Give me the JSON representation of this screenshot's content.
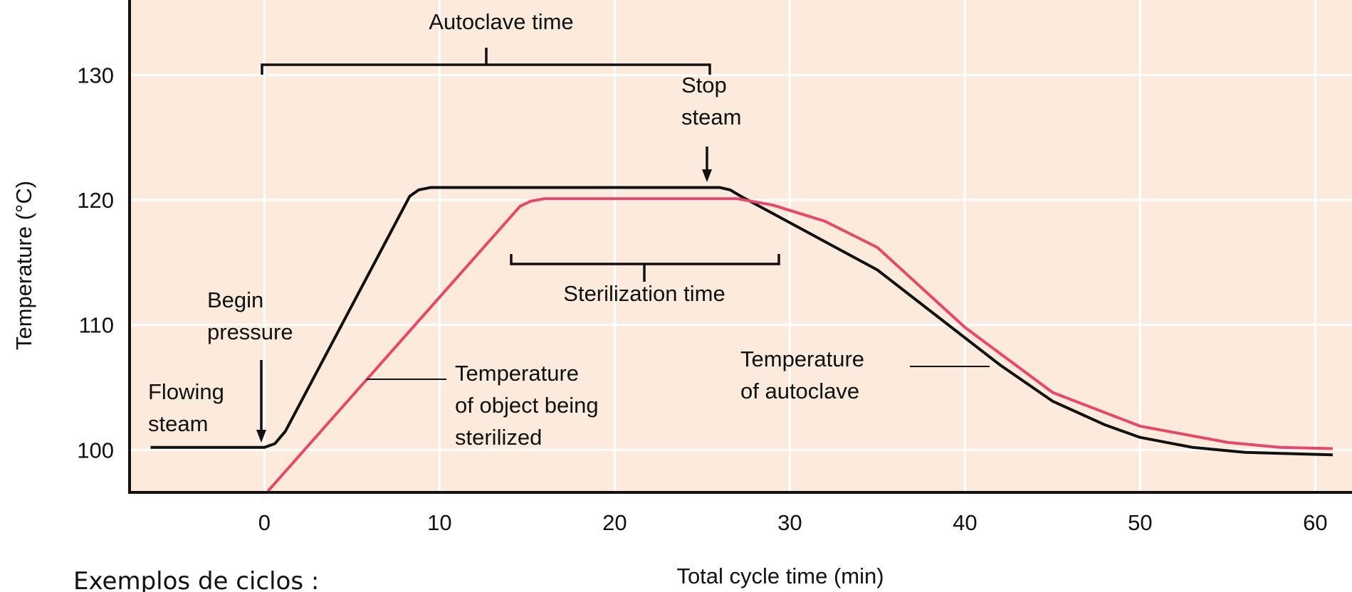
{
  "chart_data": {
    "type": "line",
    "x_label": "Total cycle time (min)",
    "y_label": "Temperature (°C)",
    "xlim": [
      -7.7,
      62.1
    ],
    "ylim": [
      96.6,
      136
    ],
    "xticks": [
      0,
      10,
      20,
      30,
      40,
      50,
      60
    ],
    "yticks": [
      100,
      110,
      120,
      130
    ],
    "grid": true,
    "series": [
      {
        "name": "Temperature of autoclave",
        "color": "#111111",
        "x": [
          -6.5,
          0,
          0.6,
          1.2,
          8.3,
          8.8,
          9.5,
          26,
          26.6,
          27.2,
          35,
          42,
          45,
          48,
          50,
          53,
          56,
          61
        ],
        "values": [
          100.2,
          100.2,
          100.5,
          101.5,
          120.3,
          120.8,
          121,
          121,
          120.8,
          120.3,
          114.4,
          106.8,
          103.9,
          102.0,
          101.0,
          100.2,
          99.8,
          99.6
        ]
      },
      {
        "name": "Temperature of object being sterilized",
        "color": "#e8476a",
        "x": [
          0.2,
          14.6,
          15.2,
          16,
          27,
          29,
          32,
          35,
          40,
          45,
          50,
          55,
          58,
          61
        ],
        "values": [
          96.7,
          119.5,
          119.9,
          120.1,
          120.1,
          119.6,
          118.3,
          116.2,
          109.8,
          104.6,
          101.9,
          100.6,
          100.2,
          100.1
        ]
      }
    ],
    "annotations": [
      [
        "Autoclave time"
      ],
      [
        "Stop",
        "steam"
      ],
      [
        "Sterilization time"
      ],
      [
        "Begin",
        "pressure"
      ],
      [
        "Flowing",
        "steam"
      ],
      [
        "Temperature",
        "of object being",
        "sterilized"
      ],
      [
        "Temperature",
        "of autoclave"
      ]
    ]
  },
  "caption": "Exemplos de ciclos :"
}
